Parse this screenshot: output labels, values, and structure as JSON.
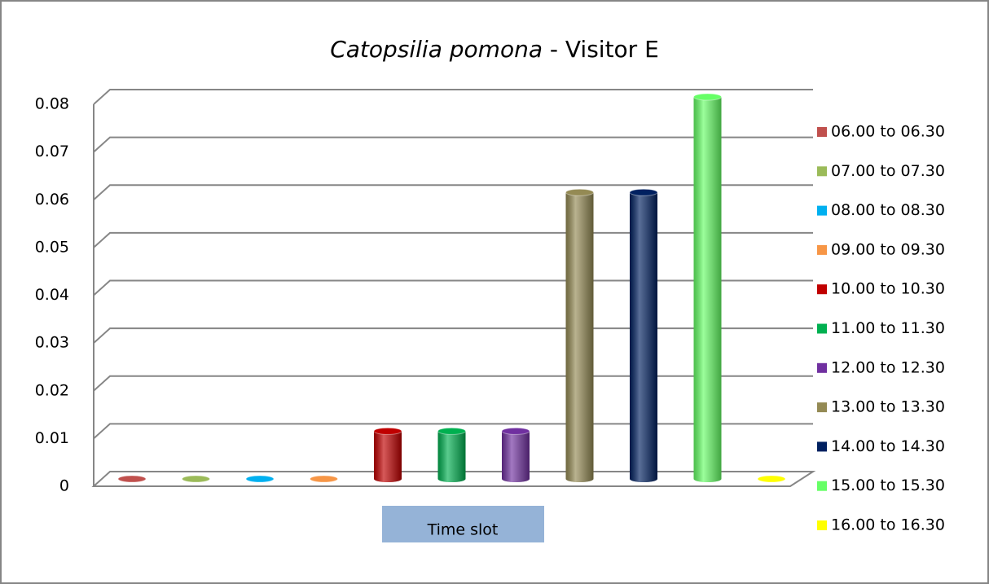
{
  "chart_data": {
    "type": "bar3d",
    "title": [
      "Catopsilia pomona",
      " - Visitor E"
    ],
    "xlabel": "Time slot",
    "ylim": [
      0,
      0.08
    ],
    "yticks": [
      0,
      0.01,
      0.02,
      0.03,
      0.04,
      0.05,
      0.06,
      0.07,
      0.08
    ],
    "grid": true,
    "legend": "right",
    "series": [
      {
        "name": "06.00 to 06.30",
        "color": "#c0504d",
        "values": [
          0
        ]
      },
      {
        "name": "07.00 to 07.30",
        "color": "#9bbb59",
        "values": [
          0
        ]
      },
      {
        "name": "08.00 to 08.30",
        "color": "#00b0f0",
        "values": [
          0
        ]
      },
      {
        "name": "09.00 to 09.30",
        "color": "#f79646",
        "values": [
          0
        ]
      },
      {
        "name": "10.00 to 10.30",
        "color": "#c00000",
        "values": [
          0.01
        ]
      },
      {
        "name": "11.00 to 11.30",
        "color": "#00b050",
        "values": [
          0.01
        ]
      },
      {
        "name": "12.00 to 12.30",
        "color": "#7030a0",
        "values": [
          0.01
        ]
      },
      {
        "name": "13.00 to 13.30",
        "color": "#948a54",
        "values": [
          0.06
        ]
      },
      {
        "name": "14.00 to 14.30",
        "color": "#002060",
        "values": [
          0.06
        ]
      },
      {
        "name": "15.00 to 15.30",
        "color": "#66ff66",
        "values": [
          0.08
        ]
      },
      {
        "name": "16.00 to 16.30",
        "color": "#ffff00",
        "values": [
          0
        ]
      }
    ]
  }
}
